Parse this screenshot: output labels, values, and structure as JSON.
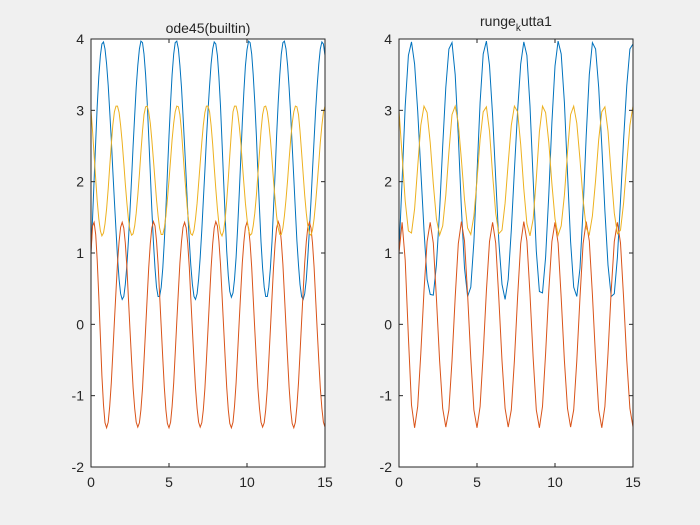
{
  "chart_data": [
    {
      "type": "line",
      "title": "ode45(builtin)",
      "xlabel": "",
      "ylabel": "",
      "xlim": [
        0,
        15
      ],
      "ylim": [
        -2,
        4
      ],
      "xticks": [
        "0",
        "5",
        "10",
        "15"
      ],
      "yticks": [
        "-2",
        "-1",
        "0",
        "1",
        "2",
        "3",
        "4"
      ],
      "grid": false,
      "legend": "none",
      "sample_step": 0.1,
      "series": [
        {
          "color": "#0072BD",
          "y": [
            1.0,
            1.5,
            2.02,
            2.56,
            3.06,
            3.47,
            3.77,
            3.93,
            3.96,
            3.86,
            3.65,
            3.35,
            2.99,
            2.59,
            2.16,
            1.73,
            1.32,
            0.94,
            0.63,
            0.43,
            0.35,
            0.39,
            0.56,
            0.83,
            1.17,
            1.59,
            2.05,
            2.5,
            2.93,
            3.32,
            3.63,
            3.86,
            3.97,
            3.95,
            3.79,
            3.5,
            3.11,
            2.64,
            2.12,
            1.62,
            1.16,
            0.79,
            0.52,
            0.39,
            0.39,
            0.52,
            0.79,
            1.16,
            1.62,
            2.12,
            2.64,
            3.11,
            3.5,
            3.79,
            3.95,
            3.97,
            3.86,
            3.63,
            3.32,
            2.93,
            2.5,
            2.05,
            1.59,
            1.17,
            0.83,
            0.56,
            0.39,
            0.35,
            0.43,
            0.63,
            0.94,
            1.32,
            1.73,
            2.16,
            2.59,
            2.99,
            3.35,
            3.65,
            3.86,
            3.96,
            3.93,
            3.77,
            3.47,
            3.06,
            2.56,
            2.02,
            1.5,
            1.03,
            0.68,
            0.46,
            0.38,
            0.44,
            0.63,
            0.94,
            1.34,
            1.82,
            2.33,
            2.83,
            3.27,
            3.62,
            3.85,
            3.97,
            3.95,
            3.79,
            3.5,
            3.11,
            2.64,
            2.12,
            1.62,
            1.16,
            0.79,
            0.52,
            0.39,
            0.39,
            0.52,
            0.79,
            1.16,
            1.62,
            2.12,
            2.64,
            3.11,
            3.5,
            3.79,
            3.95,
            3.97,
            3.86,
            3.63,
            3.32,
            2.93,
            2.5,
            2.05,
            1.59,
            1.17,
            0.83,
            0.56,
            0.39,
            0.35,
            0.43,
            0.63,
            0.94,
            1.32,
            1.73,
            2.16,
            2.59,
            2.99,
            3.35,
            3.65,
            3.86,
            3.96,
            3.93,
            3.77,
            3.47,
            3.06,
            2.56
          ]
        },
        {
          "color": "#D95319",
          "y": [
            1.0,
            1.38,
            1.43,
            1.26,
            0.9,
            0.39,
            -0.18,
            -0.72,
            -1.13,
            -1.38,
            -1.45,
            -1.37,
            -1.15,
            -0.82,
            -0.41,
            0.04,
            0.47,
            0.86,
            1.16,
            1.36,
            1.43,
            1.35,
            1.14,
            0.8,
            0.37,
            -0.08,
            -0.51,
            -0.89,
            -1.18,
            -1.37,
            -1.44,
            -1.38,
            -1.2,
            -0.9,
            -0.51,
            -0.07,
            0.38,
            0.79,
            1.13,
            1.35,
            1.44,
            1.38,
            1.17,
            0.84,
            0.42,
            -0.03,
            -0.48,
            -0.88,
            -1.2,
            -1.39,
            -1.45,
            -1.37,
            -1.15,
            -0.82,
            -0.41,
            0.04,
            0.47,
            0.86,
            1.16,
            1.36,
            1.43,
            1.35,
            1.14,
            0.8,
            0.37,
            -0.08,
            -0.51,
            -0.89,
            -1.18,
            -1.37,
            -1.44,
            -1.38,
            -1.2,
            -0.9,
            -0.51,
            -0.07,
            0.38,
            0.79,
            1.13,
            1.35,
            1.44,
            1.38,
            1.17,
            0.84,
            0.42,
            -0.03,
            -0.48,
            -0.88,
            -1.2,
            -1.39,
            -1.45,
            -1.37,
            -1.15,
            -0.82,
            -0.41,
            0.04,
            0.47,
            0.86,
            1.16,
            1.36,
            1.43,
            1.35,
            1.14,
            0.8,
            0.37,
            -0.08,
            -0.51,
            -0.89,
            -1.18,
            -1.37,
            -1.44,
            -1.38,
            -1.2,
            -0.9,
            -0.51,
            -0.07,
            0.38,
            0.79,
            1.13,
            1.35,
            1.44,
            1.38,
            1.17,
            0.84,
            0.42,
            -0.03,
            -0.48,
            -0.88,
            -1.2,
            -1.39,
            -1.45,
            -1.37,
            -1.15,
            -0.82,
            -0.41,
            0.04,
            0.47,
            0.86,
            1.16,
            1.36,
            1.43,
            1.35,
            1.14,
            0.8,
            0.37,
            -0.08,
            -0.51,
            -0.89,
            -1.18,
            -1.37,
            -1.44
          ]
        },
        {
          "color": "#EDB120",
          "y": [
            3.0,
            2.7,
            2.37,
            2.04,
            1.73,
            1.48,
            1.31,
            1.24,
            1.28,
            1.41,
            1.62,
            1.9,
            2.21,
            2.52,
            2.79,
            2.98,
            3.06,
            3.06,
            2.97,
            2.79,
            2.55,
            2.26,
            1.97,
            1.7,
            1.48,
            1.32,
            1.25,
            1.27,
            1.38,
            1.56,
            1.81,
            2.1,
            2.41,
            2.71,
            2.94,
            3.05,
            3.06,
            2.98,
            2.82,
            2.59,
            2.31,
            2.02,
            1.75,
            1.52,
            1.35,
            1.26,
            1.26,
            1.35,
            1.52,
            1.75,
            2.02,
            2.31,
            2.59,
            2.82,
            2.98,
            3.06,
            3.05,
            2.94,
            2.71,
            2.41,
            2.1,
            1.81,
            1.56,
            1.38,
            1.27,
            1.25,
            1.32,
            1.48,
            1.7,
            1.97,
            2.26,
            2.55,
            2.79,
            2.97,
            3.06,
            3.06,
            2.98,
            2.79,
            2.52,
            2.21,
            1.9,
            1.62,
            1.41,
            1.28,
            1.24,
            1.31,
            1.48,
            1.73,
            2.04,
            2.37,
            2.7,
            2.98,
            3.06,
            3.06,
            2.97,
            2.79,
            2.55,
            2.26,
            1.97,
            1.7,
            1.48,
            1.32,
            1.25,
            1.27,
            1.38,
            1.56,
            1.81,
            2.1,
            2.41,
            2.71,
            2.94,
            3.05,
            3.06,
            2.98,
            2.82,
            2.59,
            2.31,
            2.02,
            1.75,
            1.52,
            1.35,
            1.26,
            1.26,
            1.35,
            1.52,
            1.75,
            2.02,
            2.31,
            2.59,
            2.82,
            2.98,
            3.06,
            3.05,
            2.94,
            2.71,
            2.41,
            2.1,
            1.81,
            1.56,
            1.38,
            1.27,
            1.25,
            1.32,
            1.48,
            1.7,
            1.97,
            2.26,
            2.55,
            2.79,
            2.97,
            3.06,
            3.06,
            2.98,
            2.79,
            2.52,
            2.21,
            1.9,
            1.62,
            1.41,
            1.28,
            1.24,
            1.31,
            1.48,
            1.73,
            2.04
          ]
        }
      ]
    },
    {
      "type": "line",
      "title": "runge_kutta1",
      "title_parts": [
        "runge",
        "k",
        "utta1"
      ],
      "xlabel": "",
      "ylabel": "",
      "xlim": [
        0,
        15
      ],
      "ylim": [
        -2,
        4
      ],
      "xticks": [
        "0",
        "5",
        "10",
        "15"
      ],
      "yticks": [
        "-2",
        "-1",
        "0",
        "1",
        "2",
        "3",
        "4"
      ],
      "grid": false,
      "legend": "none",
      "sample_step": 0.2,
      "series": [
        {
          "color": "#0072BD",
          "y": [
            1.0,
            2.02,
            3.06,
            3.77,
            3.96,
            3.65,
            2.99,
            2.16,
            1.32,
            0.63,
            0.42,
            0.41,
            0.83,
            1.59,
            2.5,
            3.32,
            3.86,
            3.95,
            3.5,
            2.64,
            1.62,
            0.79,
            0.39,
            0.52,
            1.16,
            2.12,
            3.11,
            3.79,
            3.97,
            3.63,
            2.93,
            2.05,
            1.17,
            0.56,
            0.35,
            0.63,
            1.32,
            2.16,
            2.99,
            3.65,
            3.96,
            3.77,
            3.06,
            2.02,
            1.03,
            0.46,
            0.44,
            0.94,
            1.82,
            2.83,
            3.62,
            3.97,
            3.79,
            3.11,
            2.12,
            1.16,
            0.52,
            0.39,
            0.79,
            1.62,
            2.64,
            3.5,
            3.95,
            3.86,
            3.32,
            2.5,
            1.59,
            0.83,
            0.39,
            0.43,
            0.94,
            1.73,
            2.59,
            3.35,
            3.86,
            3.93,
            3.47
          ]
        },
        {
          "color": "#D95319",
          "y": [
            1.0,
            1.43,
            0.9,
            -0.18,
            -1.13,
            -1.45,
            -1.15,
            -0.41,
            0.47,
            1.16,
            1.43,
            1.14,
            0.37,
            -0.51,
            -1.18,
            -1.44,
            -1.2,
            -0.51,
            0.38,
            1.13,
            1.44,
            1.17,
            0.42,
            -0.48,
            -1.2,
            -1.45,
            -1.15,
            -0.41,
            0.47,
            1.16,
            1.43,
            1.14,
            0.37,
            -0.51,
            -1.18,
            -1.44,
            -1.2,
            -0.51,
            0.38,
            1.13,
            1.44,
            1.17,
            0.42,
            -0.48,
            -1.2,
            -1.45,
            -1.15,
            -0.41,
            0.47,
            1.16,
            1.43,
            1.14,
            0.37,
            -0.51,
            -1.18,
            -1.44,
            -1.2,
            -0.51,
            0.38,
            1.13,
            1.44,
            1.17,
            0.42,
            -0.48,
            -1.2,
            -1.45,
            -1.15,
            -0.41,
            0.47,
            1.16,
            1.43,
            1.14,
            0.37,
            -0.51,
            -1.18,
            -1.44,
            -1.25
          ]
        },
        {
          "color": "#EDB120",
          "y": [
            3.0,
            2.37,
            1.73,
            1.31,
            1.28,
            1.62,
            2.21,
            2.79,
            3.06,
            2.97,
            2.55,
            1.97,
            1.48,
            1.25,
            1.38,
            1.81,
            2.41,
            2.94,
            3.06,
            2.82,
            2.31,
            1.75,
            1.35,
            1.26,
            1.52,
            2.02,
            2.59,
            2.98,
            3.05,
            2.71,
            2.1,
            1.56,
            1.27,
            1.32,
            1.7,
            2.26,
            2.79,
            3.06,
            2.98,
            2.52,
            1.9,
            1.41,
            1.24,
            1.48,
            2.04,
            2.7,
            3.06,
            2.97,
            2.55,
            1.97,
            1.48,
            1.25,
            1.38,
            1.81,
            2.41,
            2.94,
            3.06,
            2.82,
            2.31,
            1.75,
            1.35,
            1.26,
            1.52,
            2.02,
            2.59,
            2.98,
            3.05,
            2.71,
            2.1,
            1.56,
            1.27,
            1.32,
            1.7,
            2.26,
            2.79,
            3.06,
            2.98
          ]
        }
      ]
    }
  ]
}
